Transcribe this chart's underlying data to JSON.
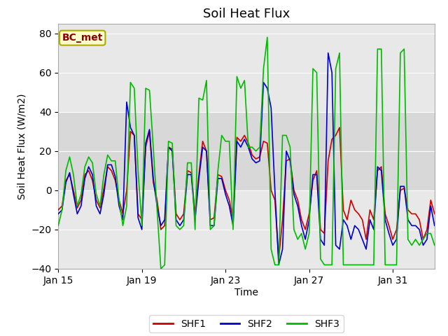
{
  "title": "Soil Heat Flux",
  "xlabel": "Time",
  "ylabel": "Soil Heat Flux (W/m2)",
  "ylim": [
    -40,
    85
  ],
  "yticks": [
    -40,
    -20,
    0,
    20,
    40,
    60,
    80
  ],
  "xtick_labels": [
    "Jan 15",
    "Jan 19",
    "Jan 23",
    "Jan 27",
    "Jan 31"
  ],
  "xtick_pos": [
    0,
    4,
    8,
    12,
    16
  ],
  "xlim": [
    0,
    18
  ],
  "legend_labels": [
    "SHF1",
    "SHF2",
    "SHF3"
  ],
  "line_colors": [
    "#cc0000",
    "#0000cc",
    "#00bb00"
  ],
  "annotation_text": "BC_met",
  "annotation_color": "#8b0000",
  "annotation_bg": "#ffffcc",
  "annotation_edge": "#aaaa00",
  "fig_bg": "#ffffff",
  "ax_bg": "#e8e8e8",
  "band_lo": -40,
  "band_hi": 85,
  "inner_band_lo": 0,
  "inner_band_hi": 40,
  "inner_band_color": "#d8d8d8",
  "grid_color": "#ffffff",
  "title_fontsize": 13,
  "axis_label_fontsize": 10,
  "tick_fontsize": 10,
  "shf1": [
    -10,
    -8,
    5,
    8,
    0,
    -9,
    -5,
    8,
    10,
    5,
    -5,
    -9,
    1,
    12,
    10,
    5,
    -5,
    -12,
    0,
    30,
    28,
    -12,
    -15,
    22,
    30,
    4,
    -5,
    -20,
    -18,
    22,
    21,
    -12,
    -15,
    -12,
    10,
    9,
    -12,
    8,
    25,
    20,
    -15,
    -14,
    8,
    7,
    0,
    -5,
    -15,
    27,
    25,
    28,
    24,
    18,
    16,
    17,
    25,
    24,
    0,
    -5,
    -35,
    -15,
    15,
    16,
    0,
    -5,
    -15,
    -20,
    -12,
    5,
    10,
    -20,
    -22,
    15,
    26,
    28,
    32,
    -10,
    -15,
    -5,
    -10,
    -12,
    -15,
    -25,
    -10,
    -15,
    10,
    12,
    -12,
    -18,
    -25,
    -20,
    0,
    1,
    -10,
    -12,
    -12,
    -15,
    -25,
    -20,
    -5,
    -12
  ],
  "shf2": [
    -12,
    -10,
    4,
    9,
    -2,
    -12,
    -8,
    6,
    12,
    8,
    -8,
    -12,
    -2,
    13,
    13,
    7,
    -8,
    -15,
    45,
    32,
    28,
    -14,
    -20,
    24,
    31,
    6,
    -8,
    -18,
    -15,
    22,
    20,
    -15,
    -18,
    -15,
    8,
    8,
    -15,
    6,
    22,
    20,
    -18,
    -18,
    6,
    6,
    -2,
    -8,
    -18,
    25,
    22,
    26,
    22,
    16,
    14,
    15,
    55,
    52,
    42,
    0,
    -38,
    -30,
    20,
    15,
    -2,
    -8,
    -18,
    -25,
    -15,
    8,
    8,
    -25,
    -28,
    70,
    60,
    -28,
    -30,
    -15,
    -18,
    -25,
    -18,
    -20,
    -25,
    -30,
    -15,
    -20,
    12,
    10,
    -15,
    -22,
    -28,
    -25,
    2,
    2,
    -15,
    -18,
    -18,
    -20,
    -28,
    -25,
    -8,
    -18
  ],
  "shf3": [
    -18,
    -10,
    10,
    17,
    8,
    -8,
    -2,
    12,
    17,
    14,
    -2,
    -8,
    8,
    18,
    15,
    15,
    -5,
    -18,
    -8,
    55,
    52,
    10,
    -18,
    52,
    51,
    22,
    -10,
    -40,
    -38,
    25,
    24,
    -18,
    -20,
    -18,
    14,
    14,
    -20,
    47,
    46,
    56,
    -20,
    -18,
    10,
    28,
    25,
    25,
    -20,
    58,
    52,
    56,
    22,
    22,
    20,
    22,
    62,
    78,
    -30,
    -38,
    -38,
    28,
    28,
    22,
    -20,
    -25,
    -22,
    -30,
    -22,
    62,
    60,
    -35,
    -38,
    -38,
    -38,
    62,
    70,
    -38,
    -38,
    -38,
    -38,
    -38,
    -38,
    -38,
    -38,
    -38,
    72,
    72,
    -38,
    -38,
    -38,
    -38,
    70,
    72,
    -25,
    -28,
    -25,
    -28,
    -25,
    -22,
    -22,
    -28
  ]
}
